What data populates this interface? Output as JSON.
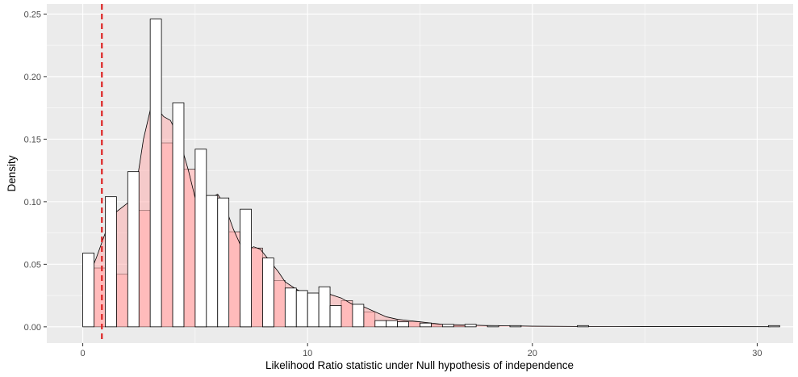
{
  "chart_data": {
    "type": "histogram",
    "xlabel": "Likelihood Ratio statistic under Null hypothesis of independence",
    "ylabel": "Density",
    "xlim": [
      -1.6,
      31.6
    ],
    "ylim": [
      -0.013,
      0.258
    ],
    "x_ticks": [
      0,
      10,
      20,
      30
    ],
    "y_ticks": [
      0,
      0.05,
      0.1,
      0.15,
      0.2,
      0.25
    ],
    "y_tick_labels": [
      "0.00",
      "0.05",
      "0.10",
      "0.15",
      "0.20",
      "0.25"
    ],
    "grid": true,
    "bin_width": 0.5,
    "reference_line": {
      "x": 0.85,
      "color": "#dd2222",
      "style": "dashed"
    },
    "histogram_unfilled": [
      {
        "x": 0.0,
        "y": 0.059
      },
      {
        "x": 0.5,
        "y": 0.0
      },
      {
        "x": 1.0,
        "y": 0.104
      },
      {
        "x": 1.5,
        "y": 0.0
      },
      {
        "x": 2.0,
        "y": 0.124
      },
      {
        "x": 2.5,
        "y": 0.0
      },
      {
        "x": 3.0,
        "y": 0.246
      },
      {
        "x": 3.5,
        "y": 0.0
      },
      {
        "x": 4.0,
        "y": 0.179
      },
      {
        "x": 4.5,
        "y": 0.0
      },
      {
        "x": 5.0,
        "y": 0.142
      },
      {
        "x": 5.5,
        "y": 0.105
      },
      {
        "x": 6.0,
        "y": 0.103
      },
      {
        "x": 6.5,
        "y": 0.0
      },
      {
        "x": 7.0,
        "y": 0.094
      },
      {
        "x": 7.5,
        "y": 0.0
      },
      {
        "x": 8.0,
        "y": 0.055
      },
      {
        "x": 8.5,
        "y": 0.0
      },
      {
        "x": 9.0,
        "y": 0.031
      },
      {
        "x": 9.5,
        "y": 0.029
      },
      {
        "x": 10.0,
        "y": 0.027
      },
      {
        "x": 10.5,
        "y": 0.032
      },
      {
        "x": 11.0,
        "y": 0.017
      },
      {
        "x": 11.5,
        "y": 0.0
      },
      {
        "x": 12.0,
        "y": 0.018
      },
      {
        "x": 12.5,
        "y": 0.0
      },
      {
        "x": 13.0,
        "y": 0.005
      },
      {
        "x": 13.5,
        "y": 0.005
      },
      {
        "x": 14.0,
        "y": 0.004
      },
      {
        "x": 14.5,
        "y": 0.0
      },
      {
        "x": 15.0,
        "y": 0.003
      },
      {
        "x": 15.5,
        "y": 0.0
      },
      {
        "x": 16.0,
        "y": 0.002
      },
      {
        "x": 16.5,
        "y": 0.0
      },
      {
        "x": 17.0,
        "y": 0.002
      },
      {
        "x": 18.0,
        "y": 0.001
      },
      {
        "x": 19.0,
        "y": 0.001
      },
      {
        "x": 22.0,
        "y": 0.001
      },
      {
        "x": 30.5,
        "y": 0.001
      }
    ],
    "histogram_filled": {
      "color": "#ffcccc",
      "bars": [
        {
          "x": 0.0,
          "y": 0.0
        },
        {
          "x": 0.5,
          "y": 0.047
        },
        {
          "x": 1.0,
          "y": 0.0
        },
        {
          "x": 1.5,
          "y": 0.042
        },
        {
          "x": 2.0,
          "y": 0.0
        },
        {
          "x": 2.5,
          "y": 0.093
        },
        {
          "x": 3.0,
          "y": 0.0
        },
        {
          "x": 3.5,
          "y": 0.147
        },
        {
          "x": 4.0,
          "y": 0.0
        },
        {
          "x": 4.5,
          "y": 0.126
        },
        {
          "x": 5.0,
          "y": 0.044
        },
        {
          "x": 5.5,
          "y": 0.0
        },
        {
          "x": 6.0,
          "y": 0.0
        },
        {
          "x": 6.5,
          "y": 0.076
        },
        {
          "x": 7.0,
          "y": 0.011
        },
        {
          "x": 7.5,
          "y": 0.063
        },
        {
          "x": 8.0,
          "y": 0.046
        },
        {
          "x": 8.5,
          "y": 0.037
        },
        {
          "x": 9.0,
          "y": 0.0
        },
        {
          "x": 9.5,
          "y": 0.0
        },
        {
          "x": 10.0,
          "y": 0.0
        },
        {
          "x": 10.5,
          "y": 0.0
        },
        {
          "x": 11.0,
          "y": 0.0
        },
        {
          "x": 11.5,
          "y": 0.021
        },
        {
          "x": 12.0,
          "y": 0.0
        },
        {
          "x": 12.5,
          "y": 0.012
        },
        {
          "x": 13.0,
          "y": 0.0
        },
        {
          "x": 13.5,
          "y": 0.0
        },
        {
          "x": 14.0,
          "y": 0.0
        },
        {
          "x": 14.5,
          "y": 0.004
        },
        {
          "x": 15.0,
          "y": 0.0
        },
        {
          "x": 15.5,
          "y": 0.002
        },
        {
          "x": 16.0,
          "y": 0.0
        },
        {
          "x": 16.5,
          "y": 0.001
        }
      ]
    },
    "density_curve": {
      "fill": "#ffaaaa",
      "x": [
        0.3,
        0.6,
        1.0,
        1.5,
        2.0,
        2.4,
        2.7,
        3.0,
        3.3,
        3.6,
        3.9,
        4.3,
        4.7,
        5.0,
        5.3,
        5.7,
        6.0,
        6.3,
        6.7,
        7.0,
        7.3,
        7.6,
        7.9,
        8.3,
        8.7,
        9.0,
        9.5,
        10.0,
        10.5,
        11.0,
        11.5,
        12.0,
        12.5,
        13.0,
        13.5,
        14.0,
        14.5,
        15.0,
        16.0,
        17.0,
        18.0,
        19.0,
        20.0,
        22.0,
        25.0,
        28.0,
        30.6
      ],
      "y": [
        0.042,
        0.055,
        0.075,
        0.092,
        0.099,
        0.115,
        0.15,
        0.173,
        0.175,
        0.168,
        0.165,
        0.15,
        0.125,
        0.103,
        0.098,
        0.103,
        0.106,
        0.098,
        0.078,
        0.066,
        0.061,
        0.064,
        0.062,
        0.053,
        0.044,
        0.036,
        0.03,
        0.026,
        0.025,
        0.026,
        0.023,
        0.018,
        0.016,
        0.012,
        0.008,
        0.006,
        0.005,
        0.004,
        0.002,
        0.0015,
        0.001,
        0.0008,
        0.0005,
        0.0003,
        0.0002,
        0.0002,
        0.0001
      ]
    }
  }
}
